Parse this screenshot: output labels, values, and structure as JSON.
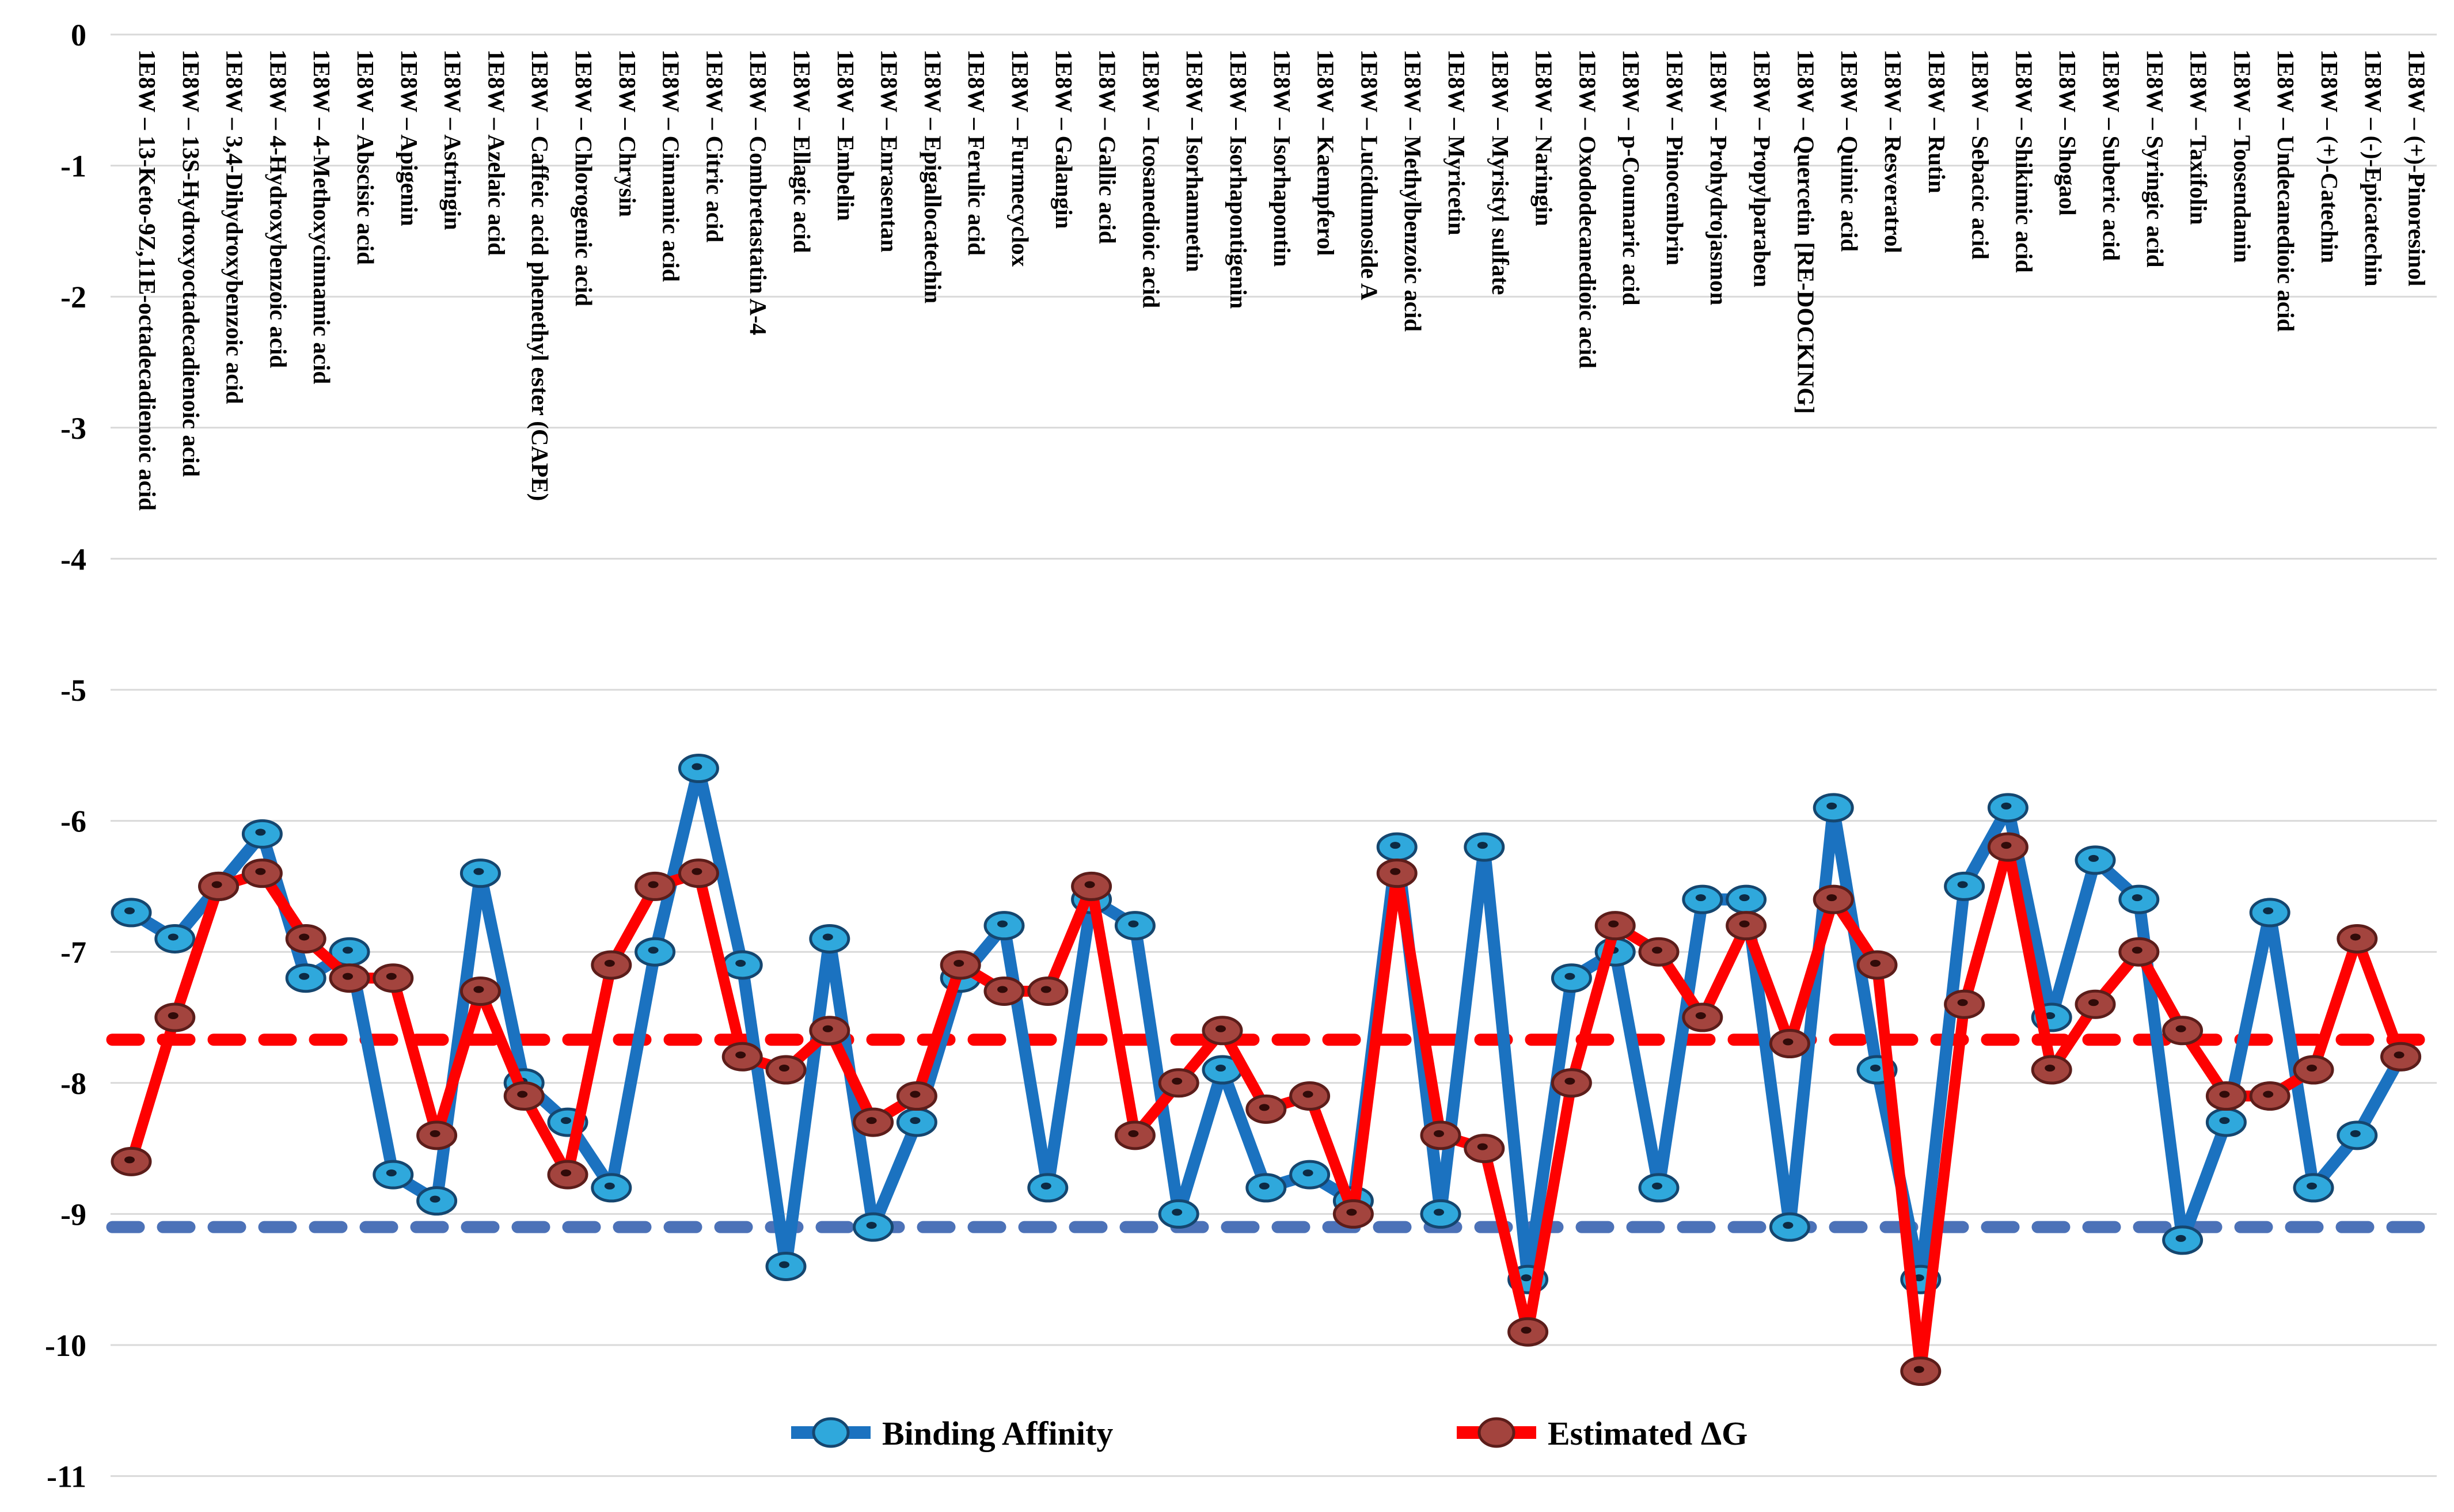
{
  "page": {
    "background": "#FFFFFF"
  },
  "chart_data": {
    "type": "line",
    "protein_tag": "1E8W",
    "categories": [
      "1E8W – 13-Keto-9Z,11E-octadecadienoic acid",
      "1E8W – 13S-Hydroxyoctadecadienoic acid",
      "1E8W – 3,4-Dihydroxybenzoic acid",
      "1E8W – 4-Hydroxybenzoic acid",
      "1E8W – 4-Methoxycinnamic acid",
      "1E8W – Abscisic acid",
      "1E8W – Apigenin",
      "1E8W – Astringin",
      "1E8W – Azelaic acid",
      "1E8W – Caffeic acid phenethyl ester (CAPE)",
      "1E8W – Chlorogenic acid",
      "1E8W – Chrysin",
      "1E8W – Cinnamic acid",
      "1E8W – Citric acid",
      "1E8W – Combretastatin A-4",
      "1E8W – Ellagic acid",
      "1E8W – Embelin",
      "1E8W – Enrasentan",
      "1E8W – Epigallocatechin",
      "1E8W – Ferulic acid",
      "1E8W – Furmecyclox",
      "1E8W – Galangin",
      "1E8W – Gallic acid",
      "1E8W – Icosanedioic acid",
      "1E8W – Isorhamnetin",
      "1E8W – Isorhapontigenin",
      "1E8W – Isorhapontin",
      "1E8W – Kaempferol",
      "1E8W – Lucidumoside A",
      "1E8W – Methylbenzoic acid",
      "1E8W – Myricetin",
      "1E8W – Myristyl sulfate",
      "1E8W – Naringin",
      "1E8W – Oxododecanedioic acid",
      "1E8W – p-Coumaric acid",
      "1E8W – Pinocembrin",
      "1E8W – Prohydrojasmon",
      "1E8W – Propylparaben",
      "1E8W – Quercetin [RE-DOCKING]",
      "1E8W – Quinic acid",
      "1E8W – Resveratrol",
      "1E8W – Rutin",
      "1E8W – Sebacic acid",
      "1E8W – Shikimic acid",
      "1E8W – Shogaol",
      "1E8W – Suberic acid",
      "1E8W – Syringic acid",
      "1E8W – Taxifolin",
      "1E8W – Toosendanin",
      "1E8W – Undecanedioic acid",
      "1E8W – (+)-Catechin",
      "1E8W – (-)-Epicatechin",
      "1E8W – (+)-Pinoresinol"
    ],
    "series": [
      {
        "name": "Binding Affinity",
        "color": "#1B72C0",
        "marker_fill": "#2FA8DC",
        "marker_stroke": "#15466F",
        "marker_hole": "#0D2B44",
        "values": [
          -6.7,
          -6.9,
          -6.5,
          -6.1,
          -7.2,
          -7.0,
          -8.7,
          -8.9,
          -6.4,
          -8.0,
          -8.3,
          -8.8,
          -7.0,
          -5.6,
          -7.1,
          -9.4,
          -6.9,
          -9.1,
          -8.3,
          -7.2,
          -6.8,
          -8.8,
          -6.6,
          -6.8,
          -9.0,
          -7.9,
          -8.8,
          -8.7,
          -8.9,
          -6.2,
          -9.0,
          -6.2,
          -9.5,
          -7.2,
          -7.0,
          -8.8,
          -6.6,
          -6.6,
          -9.1,
          -5.9,
          -7.9,
          -9.5,
          -6.5,
          -5.9,
          -7.5,
          -6.3,
          -6.6,
          -9.2,
          -8.3,
          -6.7,
          -8.8,
          -8.4,
          -7.8
        ]
      },
      {
        "name": "Estimated ΔG",
        "color": "#FE0101",
        "marker_fill": "#A3443E",
        "marker_stroke": "#5C1D1A",
        "marker_hole": "#310B09",
        "values": [
          -8.6,
          -7.5,
          -6.5,
          -6.4,
          -6.9,
          -7.2,
          -7.2,
          -8.4,
          -7.3,
          -8.1,
          -8.7,
          -7.1,
          -6.5,
          -6.4,
          -7.8,
          -7.9,
          -7.6,
          -8.3,
          -8.1,
          -7.1,
          -7.3,
          -7.3,
          -6.5,
          -8.4,
          -8.0,
          -7.6,
          -8.2,
          -8.1,
          -9.0,
          -6.4,
          -8.4,
          -8.5,
          -9.9,
          -8.0,
          -6.8,
          -7.0,
          -7.5,
          -6.8,
          -7.7,
          -6.6,
          -7.1,
          -10.2,
          -7.4,
          -6.2,
          -7.9,
          -7.4,
          -7.0,
          -7.6,
          -8.1,
          -8.1,
          -7.9,
          -6.9,
          -7.8
        ]
      }
    ],
    "reference_lines": [
      {
        "name": "estimated-dg-reference",
        "value": -7.67,
        "color": "#FE0101",
        "style": "dashed"
      },
      {
        "name": "binding-affinity-reference",
        "value": -9.1,
        "color": "#4C72B8",
        "style": "dashed"
      }
    ],
    "y_axis": {
      "min": -11,
      "max": 0,
      "tick_interval": 1,
      "tick_labels": [
        "0",
        "-1",
        "-2",
        "-3",
        "-4",
        "-5",
        "-6",
        "-7",
        "-8",
        "-9",
        "-10",
        "-11"
      ]
    },
    "grid": true,
    "gridline_color": "#D9D9D9",
    "legend_position": "bottom",
    "xlabel": "",
    "ylabel": ""
  }
}
